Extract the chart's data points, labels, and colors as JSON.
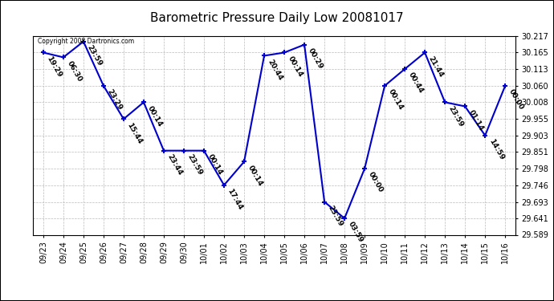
{
  "title": "Barometric Pressure Daily Low 20081017",
  "copyright": "Copyright 2008 Dartronics.com",
  "line_color": "#0000cc",
  "bg_color": "#ffffff",
  "grid_color": "#bbbbbb",
  "dates": [
    "09/23",
    "09/24",
    "09/25",
    "09/26",
    "09/27",
    "09/28",
    "09/29",
    "09/30",
    "10/01",
    "10/02",
    "10/03",
    "10/04",
    "10/05",
    "10/06",
    "10/07",
    "10/08",
    "10/09",
    "10/10",
    "10/11",
    "10/12",
    "10/13",
    "10/14",
    "10/15",
    "10/16"
  ],
  "values": [
    30.165,
    30.15,
    30.2,
    30.06,
    29.955,
    30.008,
    29.855,
    29.855,
    29.855,
    29.746,
    29.82,
    30.155,
    30.165,
    30.19,
    29.693,
    29.641,
    29.798,
    30.06,
    30.113,
    30.165,
    30.008,
    29.995,
    29.903,
    30.06
  ],
  "time_labels": [
    "19:29",
    "06:30",
    "23:59",
    "23:29",
    "15:44",
    "00:14",
    "23:44",
    "23:59",
    "00:14",
    "17:44",
    "00:14",
    "20:44",
    "00:14",
    "00:29",
    "23:59",
    "03:59",
    "00:00",
    "00:14",
    "00:44",
    "21:44",
    "23:59",
    "01:14",
    "14:59",
    "00:00"
  ],
  "ylim": [
    29.589,
    30.217
  ],
  "yticks": [
    29.589,
    29.641,
    29.693,
    29.746,
    29.798,
    29.851,
    29.903,
    29.955,
    30.008,
    30.06,
    30.113,
    30.165,
    30.217
  ],
  "marker_size": 5,
  "line_width": 1.5,
  "title_fontsize": 11,
  "tick_fontsize": 7,
  "annotation_fontsize": 6.5,
  "fig_width": 6.9,
  "fig_height": 3.75,
  "dpi": 100
}
